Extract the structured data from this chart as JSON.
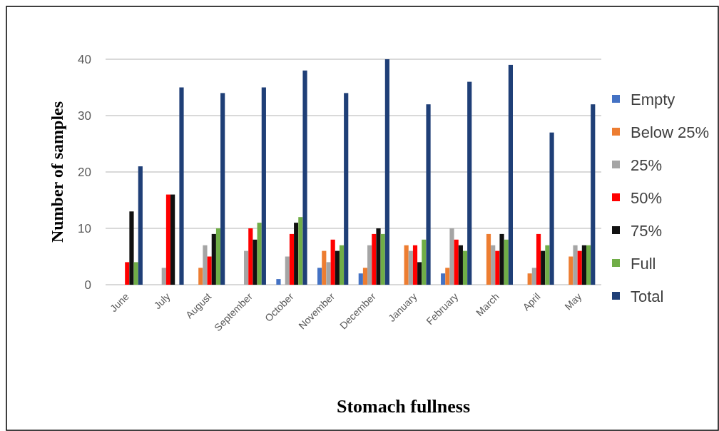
{
  "chart_data": {
    "type": "bar",
    "xlabel": "Stomach fullness",
    "ylabel": "Number of samples",
    "categories": [
      "June",
      "July",
      "August",
      "September",
      "October",
      "November",
      "December",
      "January",
      "February",
      "March",
      "April",
      "May"
    ],
    "series": [
      {
        "name": "Empty",
        "color": "#4472c4",
        "values": [
          0,
          0,
          0,
          0,
          1,
          3,
          2,
          0,
          2,
          0,
          0,
          0
        ]
      },
      {
        "name": "Below 25%",
        "color": "#ed7d31",
        "values": [
          0,
          0,
          3,
          0,
          0,
          6,
          3,
          7,
          3,
          9,
          2,
          5
        ]
      },
      {
        "name": "25%",
        "color": "#a5a5a5",
        "values": [
          0,
          3,
          7,
          6,
          5,
          4,
          7,
          6,
          10,
          7,
          3,
          7
        ]
      },
      {
        "name": "50%",
        "color": "#ff0000",
        "values": [
          4,
          16,
          5,
          10,
          9,
          8,
          9,
          7,
          8,
          6,
          9,
          6
        ]
      },
      {
        "name": "75%",
        "color": "#111111",
        "values": [
          13,
          16,
          9,
          8,
          11,
          6,
          10,
          4,
          7,
          9,
          6,
          7
        ]
      },
      {
        "name": "Full",
        "color": "#70ad47",
        "values": [
          4,
          0,
          10,
          11,
          12,
          7,
          9,
          8,
          6,
          8,
          7,
          7
        ]
      },
      {
        "name": "Total",
        "color": "#1f3f77",
        "values": [
          21,
          35,
          34,
          35,
          38,
          34,
          40,
          32,
          36,
          39,
          27,
          32
        ]
      }
    ],
    "ylim": [
      0,
      40
    ],
    "yticks": [
      0,
      10,
      20,
      30,
      40
    ],
    "grid": "y",
    "legend": "right"
  }
}
